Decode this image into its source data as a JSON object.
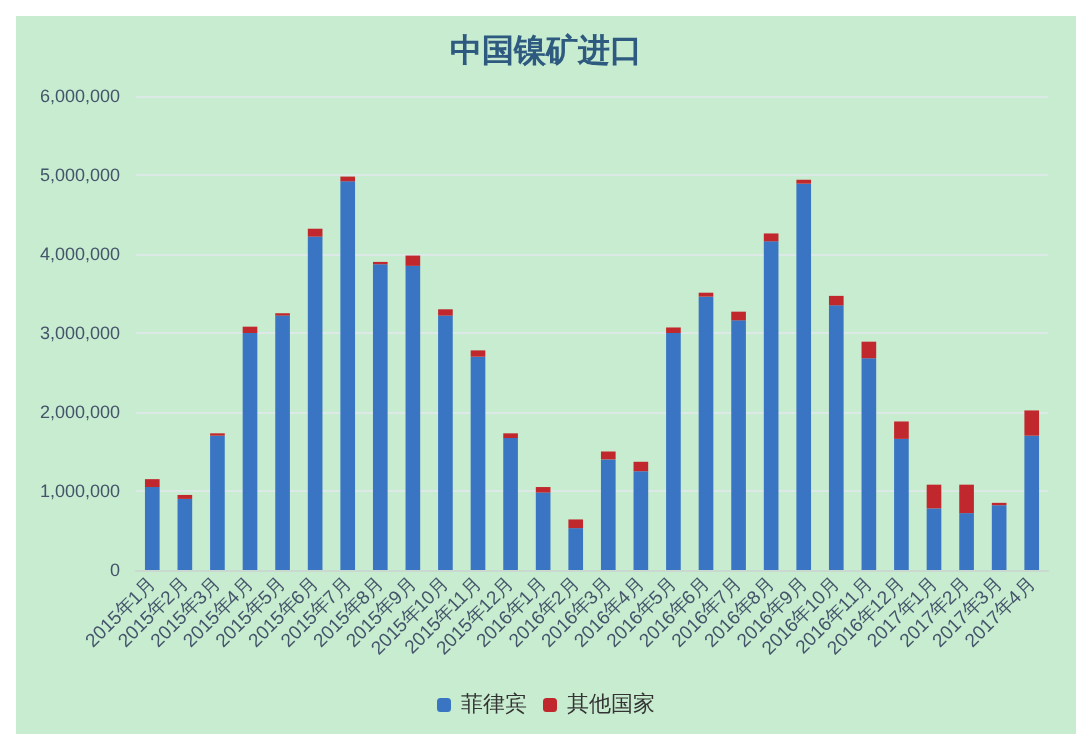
{
  "chart_data": {
    "type": "bar",
    "title": "中国镍矿进口",
    "stacked": true,
    "grid": "y",
    "legend": "bottom",
    "categories": [
      "2015年1月",
      "2015年2月",
      "2015年3月",
      "2015年4月",
      "2015年5月",
      "2015年6月",
      "2015年7月",
      "2015年8月",
      "2015年9月",
      "2015年10月",
      "2015年11月",
      "2015年12月",
      "2016年1月",
      "2016年2月",
      "2016年3月",
      "2016年4月",
      "2016年5月",
      "2016年6月",
      "2016年7月",
      "2016年8月",
      "2016年9月",
      "2016年10月",
      "2016年11月",
      "2016年12月",
      "2017年1月",
      "2017年2月",
      "2017年3月",
      "2017年4月"
    ],
    "series": [
      {
        "name": "菲律宾",
        "color": "#3a75c4",
        "values": [
          1050000,
          900000,
          1700000,
          3000000,
          3220000,
          4220000,
          4920000,
          3870000,
          3850000,
          3220000,
          2700000,
          1670000,
          980000,
          530000,
          1400000,
          1250000,
          3000000,
          3460000,
          3160000,
          4160000,
          4890000,
          3350000,
          2680000,
          1660000,
          780000,
          720000,
          820000,
          1700000
        ]
      },
      {
        "name": "其他国家",
        "color": "#c0282d",
        "values": [
          100000,
          50000,
          30000,
          80000,
          30000,
          100000,
          60000,
          30000,
          130000,
          80000,
          80000,
          60000,
          70000,
          110000,
          100000,
          120000,
          70000,
          50000,
          110000,
          100000,
          50000,
          120000,
          210000,
          220000,
          300000,
          360000,
          30000,
          320000
        ]
      }
    ],
    "ylim": [
      0,
      6000000
    ],
    "yticks": [
      0,
      {
        "value": 1000000,
        "label": "1,000,000"
      },
      {
        "value": 2000000,
        "label": "2,000,000"
      },
      {
        "value": 3000000,
        "label": "3,000,000"
      },
      {
        "value": 4000000,
        "label": "4,000,000"
      },
      {
        "value": 5000000,
        "label": "5,000,000"
      },
      {
        "value": 6000000,
        "label": "6,000,000"
      }
    ]
  }
}
